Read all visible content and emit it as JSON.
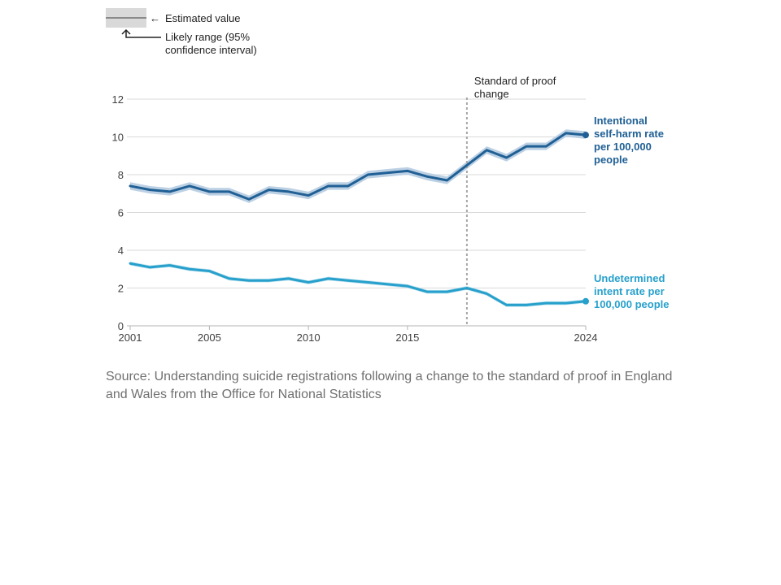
{
  "colors": {
    "self_harm": "#206095",
    "self_harm_band": "#bcd0e4",
    "undetermined": "#27a0cc",
    "undetermined_band": "#bfe3f0",
    "grid": "#d9d9d9",
    "axis": "#b3b3b3",
    "proof_line": "#a6a6a6"
  },
  "legend": {
    "estimated_label": "Estimated value",
    "range_line1": "Likely range (95%",
    "range_line2": "confidence interval)",
    "arrow_glyph": "←"
  },
  "chart_data": {
    "type": "line",
    "x": [
      2001,
      2002,
      2003,
      2004,
      2005,
      2006,
      2007,
      2008,
      2009,
      2010,
      2011,
      2012,
      2013,
      2014,
      2015,
      2016,
      2017,
      2018,
      2019,
      2020,
      2021,
      2022,
      2023,
      2024
    ],
    "xticks": [
      "2001",
      "2005",
      "2010",
      "2015",
      "2024"
    ],
    "xlim": [
      2001,
      2024
    ],
    "ylim": [
      0,
      12
    ],
    "yticks": [
      "0",
      "2",
      "4",
      "6",
      "8",
      "10",
      "12"
    ],
    "grid": true,
    "annotation": {
      "x": 2018,
      "line1": "Standard of proof",
      "line2": "change"
    },
    "series": [
      {
        "key": "self_harm",
        "label_lines": [
          "Intentional",
          "self-harm rate",
          "per 100,000",
          "people"
        ],
        "values": [
          7.4,
          7.2,
          7.1,
          7.4,
          7.1,
          7.1,
          6.7,
          7.2,
          7.1,
          6.9,
          7.4,
          7.4,
          8.0,
          8.1,
          8.2,
          7.9,
          7.7,
          8.5,
          9.3,
          8.9,
          9.5,
          9.5,
          10.2,
          10.1
        ],
        "lower": [
          7.2,
          7.0,
          6.9,
          7.2,
          6.9,
          6.9,
          6.5,
          7.0,
          6.9,
          6.7,
          7.2,
          7.2,
          7.8,
          7.9,
          8.0,
          7.7,
          7.5,
          8.3,
          9.1,
          8.7,
          9.3,
          9.3,
          10.0,
          9.9
        ],
        "upper": [
          7.6,
          7.4,
          7.3,
          7.6,
          7.3,
          7.3,
          6.9,
          7.4,
          7.3,
          7.1,
          7.6,
          7.6,
          8.2,
          8.3,
          8.4,
          8.1,
          7.9,
          8.7,
          9.5,
          9.1,
          9.7,
          9.7,
          10.4,
          10.3
        ]
      },
      {
        "key": "undetermined",
        "label_lines": [
          "Undetermined",
          "intent rate per",
          "100,000 people"
        ],
        "values": [
          3.3,
          3.1,
          3.2,
          3.0,
          2.9,
          2.5,
          2.4,
          2.4,
          2.5,
          2.3,
          2.5,
          2.4,
          2.3,
          2.2,
          2.1,
          1.8,
          1.8,
          2.0,
          1.7,
          1.1,
          1.1,
          1.2,
          1.2,
          1.3
        ],
        "lower": [
          3.2,
          3.0,
          3.1,
          2.9,
          2.8,
          2.4,
          2.3,
          2.3,
          2.4,
          2.2,
          2.4,
          2.3,
          2.2,
          2.1,
          2.0,
          1.7,
          1.7,
          1.9,
          1.6,
          1.0,
          1.0,
          1.1,
          1.1,
          1.2
        ],
        "upper": [
          3.4,
          3.2,
          3.3,
          3.1,
          3.0,
          2.6,
          2.5,
          2.5,
          2.6,
          2.4,
          2.6,
          2.5,
          2.4,
          2.3,
          2.2,
          1.9,
          1.9,
          2.1,
          1.8,
          1.2,
          1.2,
          1.3,
          1.3,
          1.4
        ]
      }
    ]
  },
  "source_text": "Source: Understanding suicide registrations following a change to the standard of proof in England and Wales from the Office for National Statistics"
}
